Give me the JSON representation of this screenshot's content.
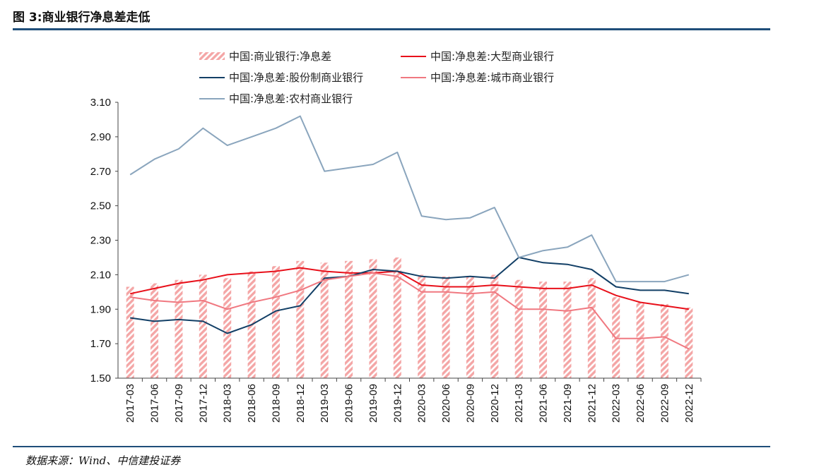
{
  "figure": {
    "title": "图 3:商业银行净息差走低",
    "source": "数据来源：Wind、中信建投证券"
  },
  "chart_data": {
    "type": "bar",
    "categories": [
      "2017-03",
      "2017-06",
      "2017-09",
      "2017-12",
      "2018-03",
      "2018-06",
      "2018-09",
      "2018-12",
      "2019-03",
      "2019-06",
      "2019-09",
      "2019-12",
      "2020-03",
      "2020-06",
      "2020-09",
      "2020-12",
      "2021-03",
      "2021-06",
      "2021-09",
      "2021-12",
      "2022-03",
      "2022-06",
      "2022-09",
      "2022-12"
    ],
    "ylim": [
      1.5,
      3.1
    ],
    "yticks": [
      "1.50",
      "1.70",
      "1.90",
      "2.10",
      "2.30",
      "2.50",
      "2.70",
      "2.90",
      "3.10"
    ],
    "legend_position": "top",
    "series": [
      {
        "name": "中国:商业银行:净息差",
        "kind": "bar",
        "color": "#f4a6a6",
        "values": [
          2.03,
          2.05,
          2.07,
          2.1,
          2.08,
          2.12,
          2.15,
          2.18,
          2.17,
          2.18,
          2.19,
          2.2,
          2.1,
          2.09,
          2.09,
          2.1,
          2.07,
          2.06,
          2.06,
          2.08,
          1.97,
          1.94,
          1.93,
          1.91
        ]
      },
      {
        "name": "中国:净息差:大型商业银行",
        "kind": "line",
        "color": "#e8101a",
        "values": [
          1.99,
          2.02,
          2.05,
          2.07,
          2.1,
          2.11,
          2.12,
          2.14,
          2.12,
          2.11,
          2.11,
          2.12,
          2.04,
          2.03,
          2.03,
          2.04,
          2.03,
          2.02,
          2.02,
          2.04,
          1.98,
          1.94,
          1.92,
          1.9
        ]
      },
      {
        "name": "中国:净息差:股份制商业银行",
        "kind": "line",
        "color": "#123f66",
        "values": [
          1.85,
          1.83,
          1.84,
          1.83,
          1.76,
          1.81,
          1.89,
          1.92,
          2.08,
          2.09,
          2.13,
          2.12,
          2.09,
          2.08,
          2.09,
          2.08,
          2.2,
          2.17,
          2.16,
          2.13,
          2.03,
          2.01,
          2.01,
          1.99
        ]
      },
      {
        "name": "中国:净息差:城市商业银行",
        "kind": "line",
        "color": "#f07880",
        "values": [
          1.97,
          1.95,
          1.94,
          1.95,
          1.9,
          1.94,
          1.97,
          2.01,
          2.07,
          2.09,
          2.11,
          2.09,
          2.0,
          2.0,
          1.99,
          2.0,
          1.9,
          1.9,
          1.89,
          1.91,
          1.73,
          1.73,
          1.74,
          1.67
        ]
      },
      {
        "name": "中国:净息差:农村商业银行",
        "kind": "line",
        "color": "#8aa5bd",
        "values": [
          2.68,
          2.77,
          2.83,
          2.95,
          2.85,
          2.9,
          2.95,
          3.02,
          2.7,
          2.72,
          2.74,
          2.81,
          2.44,
          2.42,
          2.43,
          2.49,
          2.2,
          2.24,
          2.26,
          2.33,
          2.06,
          2.06,
          2.06,
          2.1
        ]
      }
    ]
  }
}
